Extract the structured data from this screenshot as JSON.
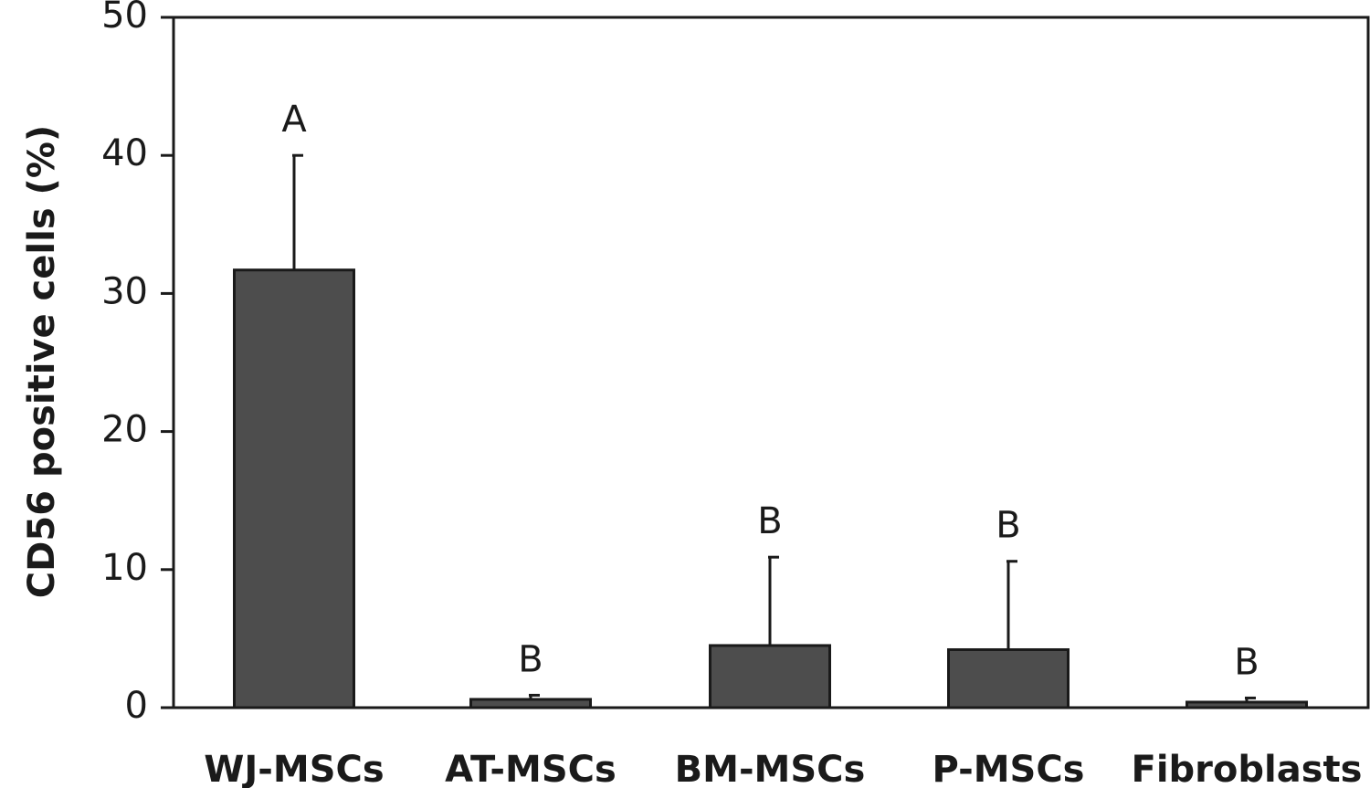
{
  "chart_data": {
    "type": "bar",
    "title": "",
    "xlabel": "",
    "ylabel": "CD56 positive cells (%)",
    "ylim": [
      0,
      50
    ],
    "yticks": [
      0,
      10,
      20,
      30,
      40,
      50
    ],
    "categories": [
      "WJ-MSCs",
      "AT-MSCs",
      "BM-MSCs",
      "P-MSCs",
      "Fibroblasts"
    ],
    "values": [
      31.7,
      0.6,
      4.5,
      4.2,
      0.4
    ],
    "error_upper": [
      8.3,
      0.3,
      6.4,
      6.4,
      0.3
    ],
    "significance_labels": [
      "A",
      "B",
      "B",
      "B",
      "B"
    ],
    "bar_color": "#4d4d4d",
    "grid": false
  }
}
